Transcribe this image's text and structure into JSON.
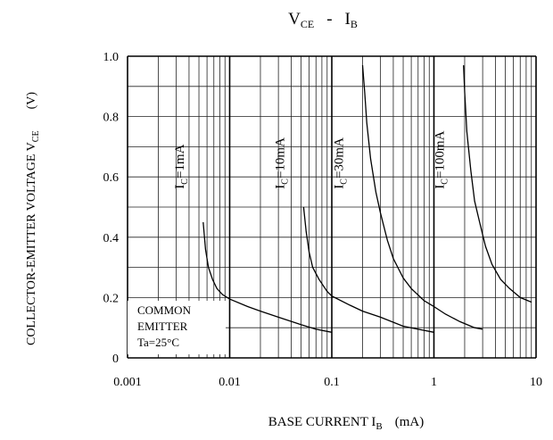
{
  "chart_data": {
    "type": "line",
    "title": {
      "main": "V",
      "main_sub": "CE",
      "sep": "-",
      "right": "I",
      "right_sub": "B"
    },
    "ylabel": {
      "main": "COLLECTOR-EMITTER VOLTAGE V",
      "sub": "CE",
      "unit": "(V)"
    },
    "xlabel": {
      "main": "BASE CURRENT I",
      "sub": "B",
      "unit": "(mA)"
    },
    "x_scale": "log",
    "xlim": [
      0.001,
      10
    ],
    "ylim": [
      0,
      1.0
    ],
    "x_ticks": [
      {
        "value": 0.001,
        "label": "0.001"
      },
      {
        "value": 0.01,
        "label": "0.01"
      },
      {
        "value": 0.1,
        "label": "0.1"
      },
      {
        "value": 1,
        "label": "1"
      },
      {
        "value": 10,
        "label": "10"
      }
    ],
    "y_ticks": [
      {
        "value": 0,
        "label": "0"
      },
      {
        "value": 0.2,
        "label": "0.2"
      },
      {
        "value": 0.4,
        "label": "0.4"
      },
      {
        "value": 0.6,
        "label": "0.6"
      },
      {
        "value": 0.8,
        "label": "0.8"
      },
      {
        "value": 1.0,
        "label": "1.0"
      }
    ],
    "grid": true,
    "annotation": {
      "lines": [
        "COMMON",
        "EMITTER",
        "Ta=25°C"
      ]
    },
    "series": [
      {
        "label_main": "I",
        "label_sub": "C",
        "label_rest": "=1mA",
        "points": [
          [
            0.0055,
            0.45
          ],
          [
            0.0058,
            0.36
          ],
          [
            0.0062,
            0.3
          ],
          [
            0.0068,
            0.26
          ],
          [
            0.0075,
            0.23
          ],
          [
            0.0085,
            0.21
          ],
          [
            0.01,
            0.195
          ],
          [
            0.015,
            0.17
          ],
          [
            0.02,
            0.155
          ],
          [
            0.03,
            0.135
          ],
          [
            0.05,
            0.11
          ],
          [
            0.07,
            0.095
          ],
          [
            0.1,
            0.085
          ]
        ]
      },
      {
        "label_main": "I",
        "label_sub": "C",
        "label_rest": "=10mA",
        "points": [
          [
            0.053,
            0.5
          ],
          [
            0.056,
            0.42
          ],
          [
            0.06,
            0.35
          ],
          [
            0.065,
            0.3
          ],
          [
            0.075,
            0.26
          ],
          [
            0.09,
            0.22
          ],
          [
            0.1,
            0.205
          ],
          [
            0.15,
            0.175
          ],
          [
            0.2,
            0.155
          ],
          [
            0.3,
            0.135
          ],
          [
            0.5,
            0.105
          ],
          [
            0.7,
            0.095
          ],
          [
            1.0,
            0.085
          ]
        ]
      },
      {
        "label_main": "I",
        "label_sub": "C",
        "label_rest": "=30mA",
        "points": [
          [
            0.2,
            0.97
          ],
          [
            0.21,
            0.88
          ],
          [
            0.22,
            0.78
          ],
          [
            0.24,
            0.66
          ],
          [
            0.27,
            0.55
          ],
          [
            0.3,
            0.48
          ],
          [
            0.35,
            0.39
          ],
          [
            0.4,
            0.33
          ],
          [
            0.5,
            0.265
          ],
          [
            0.6,
            0.23
          ],
          [
            0.8,
            0.19
          ],
          [
            1.0,
            0.17
          ],
          [
            1.3,
            0.145
          ],
          [
            1.8,
            0.12
          ],
          [
            2.5,
            0.1
          ],
          [
            3.0,
            0.095
          ]
        ]
      },
      {
        "label_main": "I",
        "label_sub": "C",
        "label_rest": "=100mA",
        "points": [
          [
            1.95,
            0.97
          ],
          [
            2.0,
            0.88
          ],
          [
            2.1,
            0.75
          ],
          [
            2.3,
            0.62
          ],
          [
            2.5,
            0.52
          ],
          [
            2.8,
            0.45
          ],
          [
            3.2,
            0.37
          ],
          [
            3.7,
            0.31
          ],
          [
            4.5,
            0.26
          ],
          [
            5.5,
            0.23
          ],
          [
            7.0,
            0.2
          ],
          [
            9.0,
            0.185
          ]
        ]
      }
    ]
  }
}
